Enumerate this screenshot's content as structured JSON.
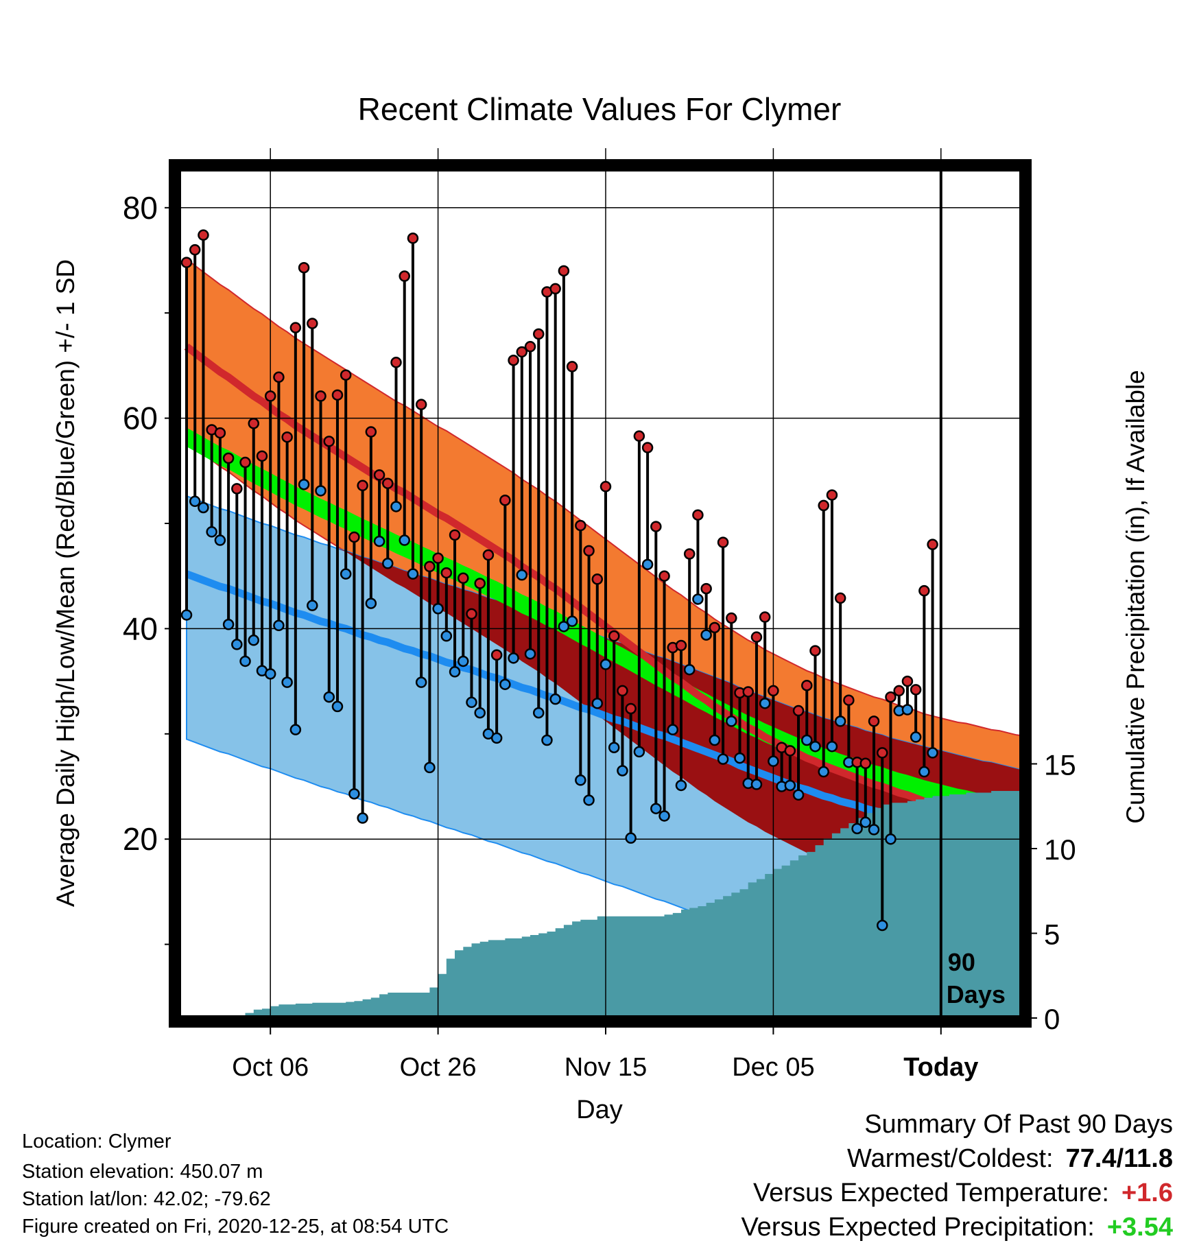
{
  "chart_data": {
    "type": "line",
    "title": "Recent Climate Values For Clymer",
    "xlabel": "Day",
    "ylabel": "Average Daily High/Low/Mean (Red/Blue/Green) +/- 1 SD",
    "ylabel2": "Cumulative Precipitation (in), If Available",
    "ylim": [
      0,
      80
    ],
    "ylim2": [
      0,
      20
    ],
    "yticks": [
      "20",
      "40",
      "60",
      "80"
    ],
    "yticks2": [
      "0",
      "5",
      "10",
      "15"
    ],
    "xticks": [
      "Oct 06",
      "Oct 26",
      "Nov 15",
      "Dec 05",
      "Today"
    ],
    "days": 101,
    "today_index": 90,
    "today_label": [
      "90",
      "Days"
    ],
    "highs": [
      74.8,
      76.0,
      77.4,
      58.9,
      58.6,
      56.2,
      53.3,
      55.8,
      59.5,
      56.4,
      62.1,
      63.9,
      58.2,
      68.6,
      74.3,
      69.0,
      62.1,
      57.8,
      62.2,
      64.1,
      48.7,
      53.6,
      58.7,
      54.6,
      53.8,
      65.3,
      73.5,
      77.1,
      61.3,
      45.9,
      46.7,
      45.3,
      48.9,
      44.8,
      41.4,
      44.3,
      47.0,
      37.5,
      52.2,
      65.5,
      66.3,
      66.8,
      68.0,
      72.0,
      72.3,
      74.0,
      64.9,
      49.8,
      47.4,
      44.7,
      53.5,
      39.3,
      34.1,
      32.4,
      58.3,
      57.2,
      49.7,
      45.0,
      38.2,
      38.4,
      47.1,
      50.8,
      43.8,
      40.1,
      48.2,
      41.0,
      33.9,
      34.0,
      39.2,
      41.1,
      34.1,
      28.7,
      28.4,
      32.2,
      34.6,
      37.9,
      51.7,
      52.7,
      42.9,
      33.2,
      27.3,
      27.2,
      31.2,
      28.2,
      33.5,
      34.1,
      35.0,
      34.2,
      43.6,
      48.0
    ],
    "lows": [
      41.3,
      52.1,
      51.5,
      49.2,
      48.4,
      40.4,
      38.5,
      36.9,
      38.9,
      36.0,
      35.7,
      40.3,
      34.9,
      30.4,
      53.7,
      42.2,
      53.1,
      33.5,
      32.6,
      45.2,
      24.3,
      22.0,
      42.4,
      48.3,
      46.2,
      51.6,
      48.4,
      45.2,
      34.9,
      26.8,
      41.9,
      39.3,
      35.9,
      36.9,
      33.0,
      32.0,
      30.0,
      29.6,
      34.7,
      37.2,
      45.1,
      37.6,
      32.0,
      29.4,
      33.3,
      40.2,
      40.7,
      25.6,
      23.7,
      32.9,
      36.6,
      28.7,
      26.5,
      20.1,
      28.3,
      46.1,
      22.9,
      22.2,
      30.4,
      25.1,
      36.1,
      42.8,
      39.4,
      29.4,
      27.6,
      31.2,
      27.7,
      25.3,
      25.2,
      32.9,
      27.4,
      25.0,
      25.1,
      24.2,
      29.4,
      28.8,
      26.4,
      28.8,
      31.2,
      27.3,
      21.0,
      21.6,
      20.9,
      11.8,
      20.0,
      32.2,
      32.3,
      29.7,
      26.4,
      28.2
    ],
    "normal_high": [
      66.8,
      66.2,
      65.6,
      65.0,
      64.4,
      63.9,
      63.3,
      62.7,
      62.1,
      61.6,
      61.0,
      60.4,
      59.9,
      59.3,
      58.8,
      58.3,
      57.8,
      57.3,
      56.8,
      56.3,
      55.8,
      55.3,
      54.8,
      54.3,
      53.8,
      53.3,
      52.9,
      52.4,
      51.9,
      51.4,
      50.9,
      50.5,
      50.0,
      49.5,
      49.0,
      48.5,
      48.0,
      47.5,
      47.0,
      46.5,
      45.9,
      45.4,
      44.9,
      44.3,
      43.8,
      43.2,
      42.6,
      42.0,
      41.4,
      40.8,
      40.2,
      39.6,
      39.0,
      38.4,
      37.8,
      37.2,
      36.6,
      36.0,
      35.4,
      34.9,
      34.3,
      33.7,
      33.2,
      32.6,
      32.1,
      31.6,
      31.1,
      30.6,
      30.2,
      29.7,
      29.3,
      28.9,
      28.5,
      28.1,
      27.7,
      27.4,
      27.0,
      26.7,
      26.4,
      26.1,
      25.8,
      25.5,
      25.2,
      25.0,
      24.7,
      24.4,
      24.2,
      23.9,
      23.6,
      23.4,
      23.2,
      23.0,
      22.8,
      22.7,
      22.5,
      22.3,
      22.1,
      22.0,
      21.8,
      21.6,
      21.5
    ],
    "normal_low": [
      37.2,
      36.9,
      36.6,
      36.3,
      36.0,
      35.8,
      35.5,
      35.2,
      34.9,
      34.6,
      34.4,
      34.1,
      33.8,
      33.5,
      33.3,
      33.0,
      32.7,
      32.5,
      32.2,
      32.0,
      31.7,
      31.4,
      31.2,
      30.9,
      30.7,
      30.4,
      30.1,
      29.9,
      29.6,
      29.4,
      29.1,
      28.8,
      28.6,
      28.3,
      28.1,
      27.8,
      27.5,
      27.3,
      27.0,
      26.7,
      26.4,
      26.2,
      25.9,
      25.6,
      25.4,
      25.1,
      24.8,
      24.5,
      24.3,
      24.0,
      23.7,
      23.4,
      23.2,
      22.9,
      22.6,
      22.3,
      22.0,
      21.8,
      21.5,
      21.2,
      20.9,
      20.6,
      20.3,
      20.0,
      19.7,
      19.4,
      19.0,
      18.7,
      18.4,
      18.1,
      17.8,
      17.5,
      17.2,
      16.9,
      16.7,
      16.4,
      16.1,
      15.9,
      15.6,
      15.4,
      15.2,
      14.9,
      14.7,
      14.5,
      14.2,
      14.0,
      13.8,
      13.6,
      13.4,
      13.2,
      13.0,
      12.8,
      12.6,
      12.4,
      12.2,
      12.0,
      11.9,
      11.7,
      11.5,
      11.3,
      11.1
    ],
    "precip": [
      0.0,
      0.0,
      0.0,
      0.0,
      0.0,
      0.05,
      0.1,
      0.3,
      0.5,
      0.55,
      0.7,
      0.8,
      0.8,
      0.85,
      0.85,
      0.9,
      0.9,
      0.9,
      0.9,
      0.95,
      1.0,
      1.1,
      1.2,
      1.4,
      1.5,
      1.5,
      1.5,
      1.5,
      1.5,
      1.8,
      2.6,
      3.5,
      4.0,
      4.2,
      4.4,
      4.5,
      4.6,
      4.6,
      4.7,
      4.7,
      4.8,
      4.9,
      5.0,
      5.1,
      5.3,
      5.5,
      5.7,
      5.8,
      5.8,
      6.0,
      6.0,
      6.0,
      6.0,
      6.0,
      6.0,
      6.0,
      6.0,
      6.1,
      6.2,
      6.4,
      6.5,
      6.6,
      6.8,
      7.0,
      7.2,
      7.4,
      7.6,
      8.0,
      8.2,
      8.5,
      8.8,
      9.0,
      9.3,
      9.6,
      9.8,
      10.2,
      10.6,
      10.9,
      11.2,
      11.5,
      11.8,
      12.1,
      12.4,
      12.6,
      12.7,
      12.7,
      12.8,
      12.9,
      13.0,
      13.1,
      13.1,
      13.2,
      13.2,
      13.3,
      13.3,
      13.3,
      13.4,
      13.4,
      13.4,
      13.4,
      13.4
    ],
    "series": [
      {
        "name": "High",
        "color": "#d0282c"
      },
      {
        "name": "Low",
        "color": "#1e8cf0"
      },
      {
        "name": "Mean",
        "color": "#00f000"
      }
    ],
    "colors": {
      "high_band": "#f37a30",
      "high_line": "#d0282c",
      "low_band": "#86c2e8",
      "low_line": "#1e8cf0",
      "mean_band": "#00f000",
      "overlap_band": "#9a1012",
      "precip_fill": "#4a9aa5",
      "point_high": "#d0282c",
      "point_low": "#2d8fe0"
    }
  },
  "meta": {
    "location": "Location: Clymer",
    "elevation": "Station elevation: 450.07 m",
    "latlon": "Station lat/lon: 42.02; -79.62",
    "created": "Figure created on Fri, 2020-12-25, at 08:54 UTC"
  },
  "summary": {
    "title": "Summary Of Past 90 Days",
    "warm_cold_label": "Warmest/Coldest:",
    "warm_cold_value": "77.4/11.8",
    "temp_label": "Versus Expected Temperature:",
    "temp_value": "+1.6",
    "temp_color": "#d0282c",
    "precip_label": "Versus Expected Precipitation:",
    "precip_value": "+3.54",
    "precip_color": "#22cc22"
  }
}
